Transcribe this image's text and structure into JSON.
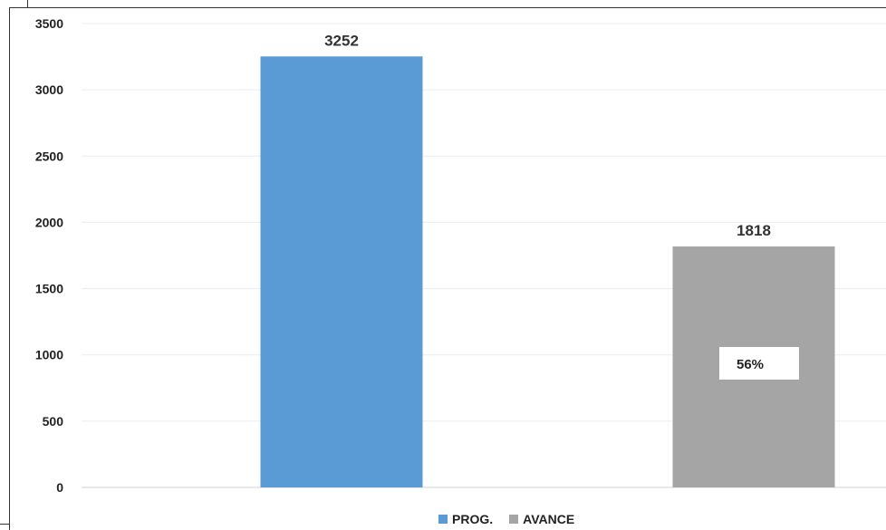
{
  "chart_data": {
    "type": "bar",
    "categories": [
      "",
      ""
    ],
    "series": [
      {
        "name": "PROG.",
        "values": [
          3252,
          null
        ],
        "color": "#5b9bd5"
      },
      {
        "name": "AVANCE",
        "values": [
          null,
          1818
        ],
        "color": "#a5a5a5"
      }
    ],
    "data_labels": [
      "3252",
      "1818"
    ],
    "annotation": "56%",
    "title": "",
    "xlabel": "",
    "ylabel": "",
    "ylim": [
      0,
      3500
    ],
    "yticks": [
      "0",
      "500",
      "1000",
      "1500",
      "2000",
      "2500",
      "3000",
      "3500"
    ],
    "grid": true,
    "legend_position": "bottom"
  }
}
